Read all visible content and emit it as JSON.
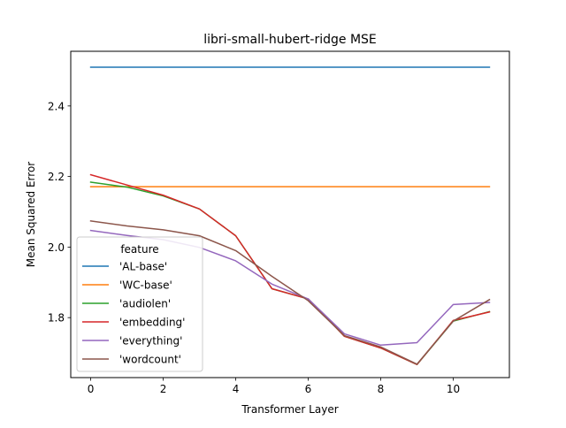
{
  "chart_data": {
    "type": "line",
    "title": "libri-small-hubert-ridge MSE",
    "xlabel": "Transformer Layer",
    "ylabel": "Mean Squared Error",
    "xlim": [
      -0.55,
      11.55
    ],
    "ylim": [
      1.63,
      2.555
    ],
    "xticks": [
      0,
      2,
      4,
      6,
      8,
      10
    ],
    "yticks": [
      1.8,
      2.0,
      2.2,
      2.4
    ],
    "xtick_labels": [
      "0",
      "2",
      "4",
      "6",
      "8",
      "10"
    ],
    "ytick_labels": [
      "1.8",
      "2.0",
      "2.2",
      "2.4"
    ],
    "grid": false,
    "legend": {
      "title": "feature",
      "placement": "lower-left"
    },
    "x": [
      0,
      1,
      2,
      3,
      4,
      5,
      6,
      7,
      8,
      9,
      10,
      11
    ],
    "series": [
      {
        "name": "'AL-base'",
        "color": "#1f77b4",
        "values": [
          2.51,
          2.51,
          2.51,
          2.51,
          2.51,
          2.51,
          2.51,
          2.51,
          2.51,
          2.51,
          2.51,
          2.51
        ]
      },
      {
        "name": "'WC-base'",
        "color": "#ff7f0e",
        "values": [
          2.171,
          2.171,
          2.171,
          2.171,
          2.171,
          2.171,
          2.171,
          2.171,
          2.171,
          2.171,
          2.171,
          2.171
        ]
      },
      {
        "name": "'audiolen'",
        "color": "#2ca02c",
        "values": [
          2.184,
          2.17,
          2.145,
          2.108,
          2.032,
          1.882,
          1.853,
          1.747,
          1.714,
          1.667,
          1.79,
          1.817
        ]
      },
      {
        "name": "'embedding'",
        "color": "#d62728",
        "values": [
          2.205,
          2.176,
          2.147,
          2.108,
          2.032,
          1.882,
          1.853,
          1.747,
          1.714,
          1.667,
          1.792,
          1.816
        ]
      },
      {
        "name": "'everything'",
        "color": "#9467bd",
        "values": [
          2.047,
          2.033,
          2.021,
          1.999,
          1.961,
          1.895,
          1.853,
          1.754,
          1.722,
          1.729,
          1.837,
          1.843
        ]
      },
      {
        "name": "'wordcount'",
        "color": "#8c564b",
        "values": [
          2.074,
          2.06,
          2.049,
          2.032,
          1.99,
          1.917,
          1.848,
          1.749,
          1.717,
          1.668,
          1.79,
          1.851
        ]
      }
    ]
  }
}
